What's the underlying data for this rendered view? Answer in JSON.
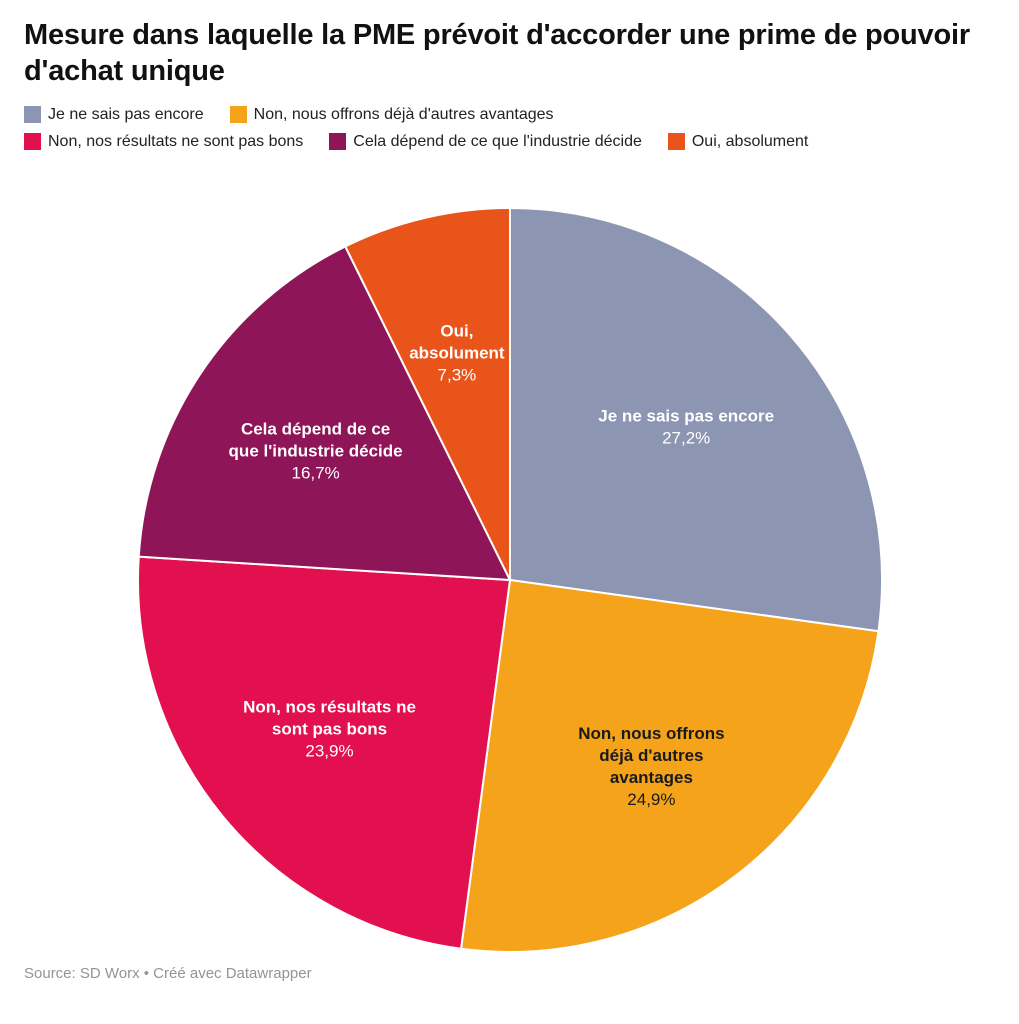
{
  "header": {
    "title": "Mesure dans laquelle la PME prévoit d'accorder une prime de pouvoir d'achat unique"
  },
  "footer": {
    "source": "Source: SD Worx • Créé avec Datawrapper"
  },
  "chart_data": {
    "type": "pie",
    "title": "Mesure dans laquelle la PME prévoit d'accorder une prime de pouvoir d'achat unique",
    "start_angle_deg": -90,
    "direction": "clockwise",
    "legend_position": "top",
    "legend_rows": [
      [
        0,
        1
      ],
      [
        2,
        3,
        4
      ]
    ],
    "slices": [
      {
        "label": "Je ne sais pas encore",
        "value": 27.2,
        "percent_label": "27,2%",
        "color": "#8C96B2",
        "label_color": "#ffffff",
        "label_lines": [
          "Je ne sais pas encore"
        ]
      },
      {
        "label": "Non, nous offrons déjà d'autres avantages",
        "value": 24.9,
        "percent_label": "24,9%",
        "color": "#F5A31B",
        "label_color": "#1a1a1a",
        "label_lines": [
          "Non, nous offrons",
          "déjà d'autres",
          "avantages"
        ]
      },
      {
        "label": "Non, nos résultats ne sont pas bons",
        "value": 23.9,
        "percent_label": "23,9%",
        "color": "#E3104F",
        "label_color": "#ffffff",
        "label_lines": [
          "Non, nos résultats ne",
          "sont pas bons"
        ]
      },
      {
        "label": "Cela dépend de ce que l'industrie décide",
        "value": 16.7,
        "percent_label": "16,7%",
        "color": "#8E1557",
        "label_color": "#ffffff",
        "label_lines": [
          "Cela dépend de ce",
          "que l'industrie décide"
        ]
      },
      {
        "label": "Oui, absolument",
        "value": 7.3,
        "percent_label": "7,3%",
        "color": "#E8541A",
        "label_color": "#ffffff",
        "label_lines": [
          "Oui,",
          "absolument"
        ]
      }
    ]
  }
}
